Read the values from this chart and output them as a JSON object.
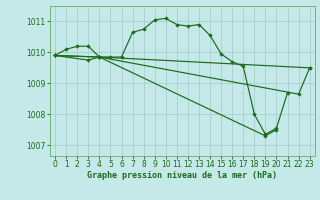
{
  "title": "Graphe pression niveau de la mer (hPa)",
  "background_color": "#c5e8e8",
  "grid_color": "#a8cece",
  "line_color": "#1a6b1a",
  "ylim": [
    1006.65,
    1011.5
  ],
  "xlim": [
    -0.5,
    23.5
  ],
  "yticks": [
    1007,
    1008,
    1009,
    1010,
    1011
  ],
  "xticks": [
    0,
    1,
    2,
    3,
    4,
    5,
    6,
    7,
    8,
    9,
    10,
    11,
    12,
    13,
    14,
    15,
    16,
    17,
    18,
    19,
    20,
    21,
    22,
    23
  ],
  "series1_x": [
    0,
    1,
    2,
    3,
    4,
    5,
    6,
    7,
    8,
    9,
    10,
    11,
    12,
    13,
    14,
    15,
    16,
    17,
    18,
    19,
    20,
    21
  ],
  "series1_y": [
    1009.9,
    1010.1,
    1010.2,
    1010.2,
    1009.85,
    1009.85,
    1009.85,
    1010.65,
    1010.75,
    1011.05,
    1011.1,
    1010.9,
    1010.85,
    1010.9,
    1010.55,
    1009.95,
    1009.7,
    1009.55,
    1008.0,
    1007.35,
    1007.55,
    1008.7
  ],
  "series2_x": [
    0,
    4,
    23
  ],
  "series2_y": [
    1009.9,
    1009.85,
    1009.5
  ],
  "series3_x": [
    0,
    4,
    22,
    23
  ],
  "series3_y": [
    1009.9,
    1009.85,
    1008.65,
    1009.5
  ],
  "series4_x": [
    0,
    3,
    4,
    19,
    20
  ],
  "series4_y": [
    1009.9,
    1009.75,
    1009.85,
    1007.3,
    1007.5
  ],
  "tick_fontsize": 5.5,
  "xlabel_fontsize": 6.0
}
